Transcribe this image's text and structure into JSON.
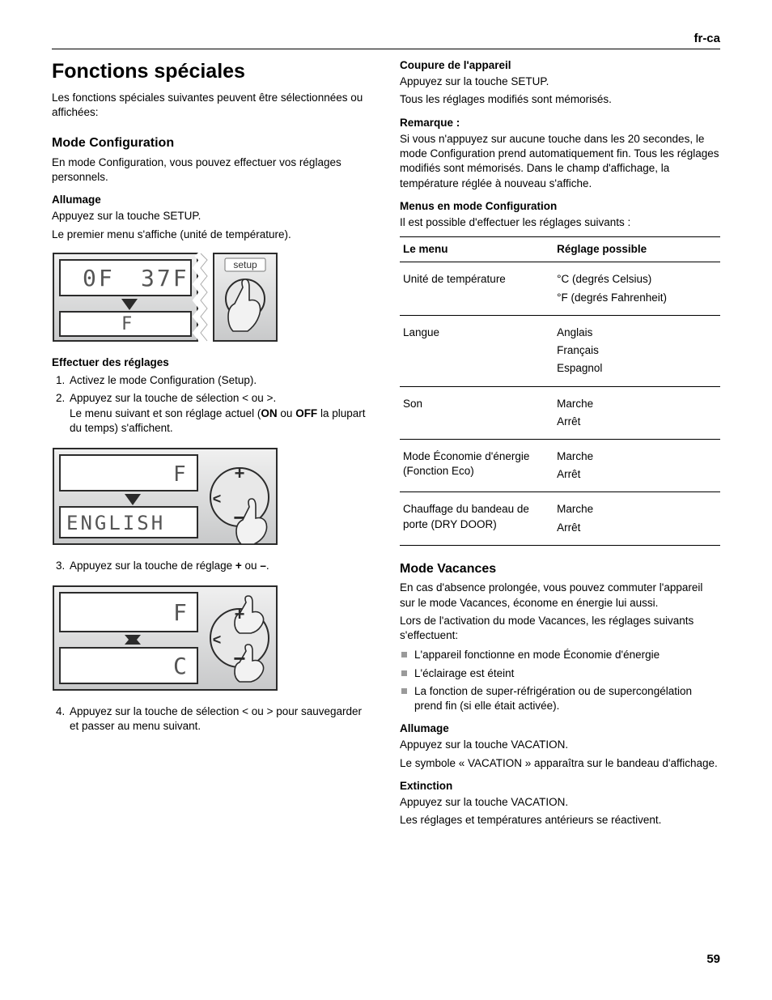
{
  "locale": "fr-ca",
  "page_number": "59",
  "left": {
    "h1": "Fonctions spéciales",
    "intro": "Les fonctions spéciales suivantes peuvent être sélectionnées ou affichées:",
    "h2_config": "Mode Configuration",
    "config_intro": "En mode Configuration, vous pouvez effectuer vos réglages personnels.",
    "h3_allumage": "Allumage",
    "allumage_1": "Appuyez sur la touche SETUP.",
    "allumage_2": "Le premier menu s'affiche (unité de température).",
    "h3_effectuer": "Effectuer des réglages",
    "step1": "Activez le mode Configuration (Setup).",
    "step2_a": "Appuyez sur la touche de sélection ",
    "step2_b": " ou ",
    "step2_c": ".",
    "step2_line2_a": "Le menu suivant et son réglage actuel (",
    "step2_on": "ON",
    "step2_mid": " ou ",
    "step2_off": "OFF",
    "step2_line2_c": " la plupart du temps) s'affichent.",
    "step3_a": "Appuyez sur la touche de réglage ",
    "step3_plus": "+",
    "step3_mid": " ou ",
    "step3_minus": "–",
    "step3_end": ".",
    "step4_a": "Appuyez sur la touche de sélection ",
    "step4_b": " ou ",
    "step4_c": " pour sauvegarder et passer au menu suivant.",
    "fig1": {
      "display_top_left": "0F",
      "display_top_right": "37F",
      "display_bottom": "F",
      "label": "setup"
    },
    "fig2": {
      "display_top": "F",
      "display_bottom": "ENGLISH"
    },
    "fig3": {
      "display_top": "F",
      "display_bottom": "C"
    }
  },
  "right": {
    "h3_coupure": "Coupure de l'appareil",
    "coupure_1": "Appuyez sur la touche SETUP.",
    "coupure_2": "Tous les réglages modifiés sont mémorisés.",
    "h3_remarque": "Remarque :",
    "remarque_body": "Si vous n'appuyez sur aucune touche dans les 20 secondes, le mode Configuration prend automatiquement fin. Tous les réglages modifiés sont mémorisés. Dans le champ d'affichage, la température réglée à nouveau s'affiche.",
    "h3_menus": "Menus en mode Configuration",
    "menus_intro": "Il est possible d'effectuer les réglages suivants :",
    "table": {
      "header_menu": "Le menu",
      "header_setting": "Réglage possible",
      "rows": [
        {
          "menu": "Unité de température",
          "options": [
            "°C (degrés Celsius)",
            "°F (degrés Fahrenheit)"
          ]
        },
        {
          "menu": "Langue",
          "options": [
            "Anglais",
            "Français",
            "Espagnol"
          ]
        },
        {
          "menu": "Son",
          "options": [
            "Marche",
            "Arrêt"
          ]
        },
        {
          "menu": "Mode Économie d'énergie (Fonction Eco)",
          "options": [
            "Marche",
            "Arrêt"
          ]
        },
        {
          "menu": "Chauffage du bandeau de porte (DRY DOOR)",
          "options": [
            "Marche",
            "Arrêt"
          ]
        }
      ]
    },
    "h2_vacances": "Mode Vacances",
    "vac_p1": "En cas d'absence prolongée, vous pouvez commuter l'appareil sur le mode Vacances, économe en énergie lui aussi.",
    "vac_p2": "Lors de l'activation du mode Vacances, les réglages suivants s'effectuent:",
    "vac_bullets": [
      "L'appareil fonctionne en mode Économie d'énergie",
      "L'éclairage est éteint",
      "La fonction de super-réfrigération ou de supercongélation prend fin (si elle était activée)."
    ],
    "h3_vac_allumage": "Allumage",
    "vac_allumage_1": "Appuyez sur la touche VACATION.",
    "vac_allumage_2": "Le symbole « VACATION » apparaîtra sur le bandeau d'affichage.",
    "h3_vac_extinction": "Extinction",
    "vac_ext_1": "Appuyez sur la touche VACATION.",
    "vac_ext_2": "Les réglages et températures antérieurs se réactivent."
  },
  "glyphs": {
    "lt": "<",
    "gt": ">"
  },
  "colors": {
    "fig_bg": "#d8d9da",
    "fig_stroke": "#2b2b2b",
    "fig_white": "#ffffff",
    "fig_hand": "#f2f2f2"
  }
}
